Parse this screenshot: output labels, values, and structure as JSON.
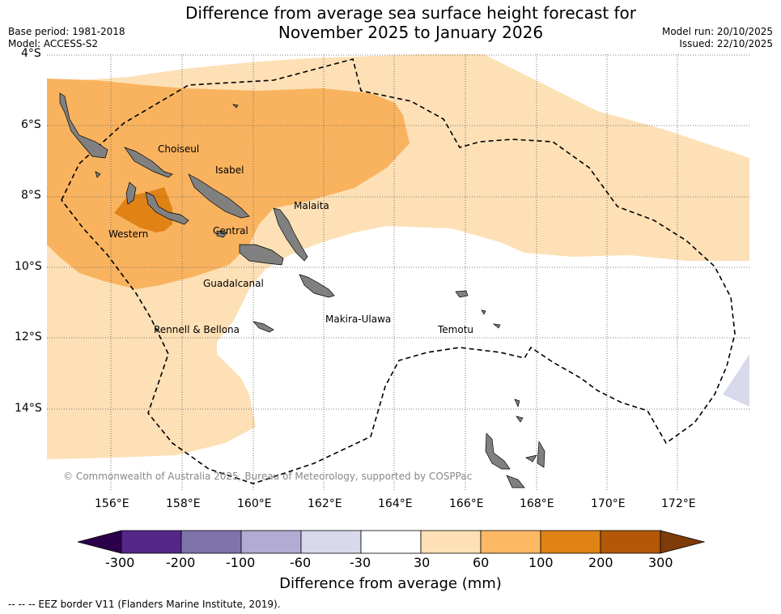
{
  "header": {
    "title_line1": "Difference from average sea surface height forecast for",
    "title_line2": "November 2025 to January 2026",
    "base_period": "Base period: 1981-2018",
    "model": "Model: ACCESS-S2",
    "model_run": "Model run: 20/10/2025",
    "issued": "Issued: 22/10/2025"
  },
  "map": {
    "lat_labels": [
      "4°S",
      "6°S",
      "8°S",
      "10°S",
      "12°S",
      "14°S"
    ],
    "lon_labels": [
      "156°E",
      "158°E",
      "160°E",
      "162°E",
      "164°E",
      "166°E",
      "168°E",
      "170°E",
      "172°E"
    ],
    "provinces": [
      "Choiseul",
      "Isabel",
      "Malaita",
      "Western",
      "Central",
      "Guadalcanal",
      "Makira-Ulawa",
      "Rennell & Bellona",
      "Temotu"
    ],
    "copyright": "© Commonwealth of Australia 2025, Bureau of Meteorology, supported by COSPPac",
    "colors": {
      "land": "#808080",
      "ocean_neutral": "#ffffff",
      "pos_30_60": "#fde0b6",
      "pos_60_100": "#f9b35f",
      "pos_100_200": "#e08214",
      "neg_30_60": "#d8daeb"
    }
  },
  "colorbar": {
    "title": "Difference from average (mm)",
    "ticks": [
      "-300",
      "-200",
      "-100",
      "-60",
      "-30",
      "30",
      "60",
      "100",
      "200",
      "300"
    ],
    "colors": [
      "#542788",
      "#8073ac",
      "#b2abd2",
      "#d8daeb",
      "#ffffff",
      "#fee0b6",
      "#fdb863",
      "#e08214",
      "#b35806"
    ],
    "extend_low": "#2d004b",
    "extend_high": "#7f3b08"
  },
  "footer": {
    "legend": "--  --  -- EEZ border V11 (Flanders Marine Institute, 2019)."
  }
}
